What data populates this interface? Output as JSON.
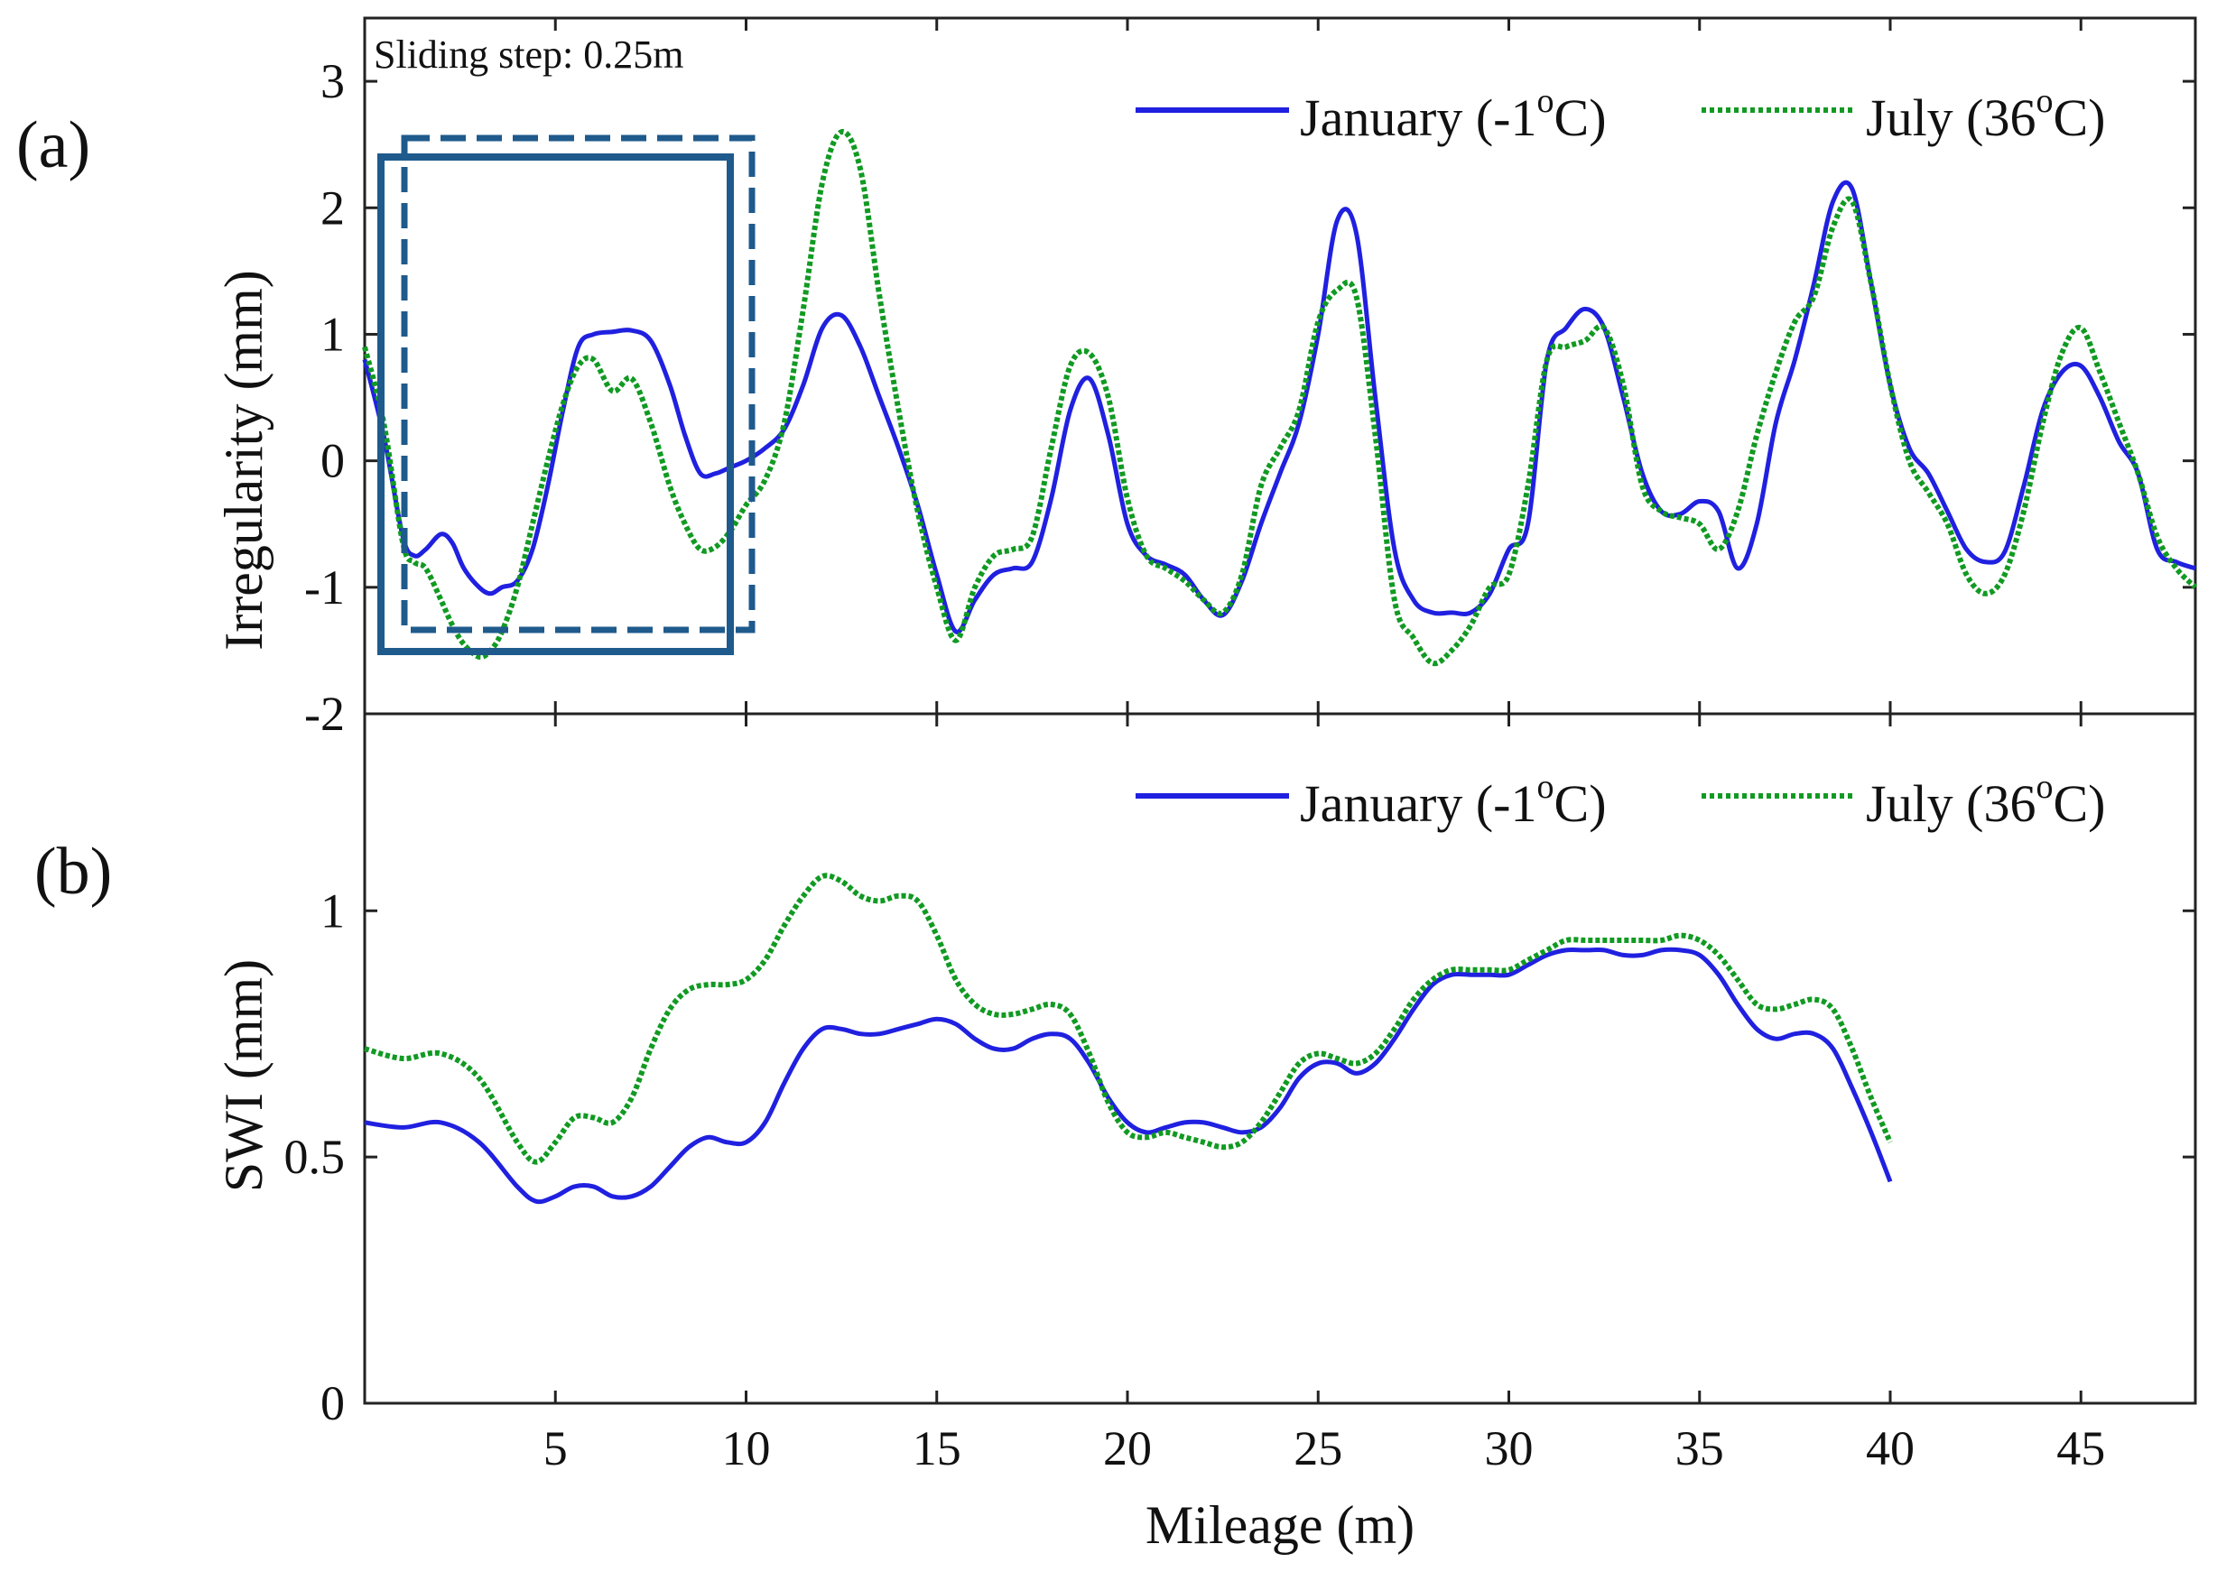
{
  "panel_a_label": "(a)",
  "panel_b_label": "(b)",
  "annotation": "Sliding step: 0.25m",
  "chart_data": [
    {
      "type": "line",
      "panel": "(a)",
      "title": "",
      "xlabel": "",
      "ylabel": "Irregularity (mm)",
      "xlim": [
        0,
        48
      ],
      "ylim": [
        -2,
        3.5
      ],
      "yticks": [
        -2,
        -1,
        0,
        1,
        2,
        3
      ],
      "grid": false,
      "legend": "top-right",
      "series": [
        {
          "name": "January",
          "legend_main": "January (-1",
          "legend_sup": "o",
          "legend_end": "C)",
          "color": "#2020e0",
          "style": "solid",
          "x": [
            0,
            0.5,
            1,
            1.3,
            1.6,
            2,
            2.3,
            2.6,
            3,
            3.3,
            3.6,
            4,
            4.4,
            4.8,
            5.2,
            5.6,
            6,
            6.5,
            7,
            7.5,
            8,
            8.4,
            8.8,
            9.2,
            9.6,
            10,
            10.5,
            11,
            11.5,
            12,
            12.5,
            13,
            13.5,
            14,
            14.5,
            15,
            15.5,
            16,
            16.5,
            17,
            17.5,
            18,
            18.5,
            19,
            19.5,
            20,
            20.5,
            21,
            21.5,
            22,
            22.5,
            23,
            23.5,
            24,
            24.5,
            25,
            25.5,
            26,
            26.5,
            27,
            27.5,
            28,
            28.5,
            29,
            29.5,
            30,
            30.5,
            31,
            31.5,
            32,
            32.5,
            33,
            33.5,
            34,
            34.5,
            35,
            35.5,
            36,
            36.5,
            37,
            37.5,
            38,
            38.5,
            39,
            39.5,
            40,
            40.5,
            41,
            41.5,
            42,
            42.5,
            43,
            43.5,
            44,
            44.5,
            45,
            45.5,
            46,
            46.5,
            47,
            47.5,
            48
          ],
          "values": [
            0.8,
            0.2,
            -0.6,
            -0.75,
            -0.7,
            -0.58,
            -0.65,
            -0.85,
            -1,
            -1.05,
            -1.0,
            -0.95,
            -0.7,
            -0.2,
            0.4,
            0.9,
            1.0,
            1.02,
            1.03,
            0.95,
            0.6,
            0.2,
            -0.1,
            -0.1,
            -0.05,
            0.0,
            0.1,
            0.25,
            0.6,
            1.05,
            1.15,
            0.9,
            0.5,
            0.1,
            -0.35,
            -0.9,
            -1.35,
            -1.1,
            -0.9,
            -0.85,
            -0.8,
            -0.3,
            0.4,
            0.65,
            0.2,
            -0.5,
            -0.75,
            -0.82,
            -0.9,
            -1.1,
            -1.22,
            -0.95,
            -0.5,
            -0.1,
            0.3,
            1.0,
            1.9,
            1.8,
            0.5,
            -0.7,
            -1.1,
            -1.2,
            -1.2,
            -1.2,
            -1.05,
            -0.7,
            -0.5,
            0.8,
            1.05,
            1.2,
            1.05,
            0.5,
            -0.1,
            -0.4,
            -0.42,
            -0.32,
            -0.4,
            -0.85,
            -0.5,
            0.3,
            0.8,
            1.4,
            2.05,
            2.15,
            1.4,
            0.6,
            0.1,
            -0.1,
            -0.4,
            -0.7,
            -0.8,
            -0.72,
            -0.2,
            0.4,
            0.7,
            0.75,
            0.5,
            0.15,
            -0.1,
            -0.7,
            -0.8,
            -0.85
          ]
        },
        {
          "name": "July",
          "legend_main": "July (36",
          "legend_sup": "o",
          "legend_end": "C)",
          "color": "#119a22",
          "style": "dotted",
          "x": [
            0,
            0.5,
            1,
            1.3,
            1.6,
            2,
            2.3,
            2.6,
            3,
            3.3,
            3.6,
            4,
            4.4,
            4.8,
            5.2,
            5.6,
            6,
            6.5,
            7,
            7.5,
            8,
            8.4,
            8.8,
            9.2,
            9.6,
            10,
            10.5,
            11,
            11.5,
            12,
            12.5,
            13,
            13.5,
            14,
            14.5,
            15,
            15.5,
            16,
            16.5,
            17,
            17.5,
            18,
            18.5,
            19,
            19.5,
            20,
            20.5,
            21,
            21.5,
            22,
            22.5,
            23,
            23.5,
            24,
            24.5,
            25,
            25.5,
            26,
            26.5,
            27,
            27.5,
            28,
            28.5,
            29,
            29.5,
            30,
            30.5,
            31,
            31.5,
            32,
            32.5,
            33,
            33.5,
            34,
            34.5,
            35,
            35.5,
            36,
            36.5,
            37,
            37.5,
            38,
            38.5,
            39,
            39.5,
            40,
            40.5,
            41,
            41.5,
            42,
            42.5,
            43,
            43.5,
            44,
            44.5,
            45,
            45.5,
            46,
            46.5,
            47,
            47.5,
            48
          ],
          "values": [
            0.9,
            0.3,
            -0.65,
            -0.8,
            -0.85,
            -1.1,
            -1.3,
            -1.45,
            -1.55,
            -1.5,
            -1.35,
            -1.0,
            -0.5,
            0.0,
            0.45,
            0.75,
            0.8,
            0.55,
            0.65,
            0.3,
            -0.2,
            -0.5,
            -0.7,
            -0.68,
            -0.55,
            -0.35,
            -0.15,
            0.3,
            1.2,
            2.2,
            2.6,
            2.3,
            1.3,
            0.4,
            -0.4,
            -1.0,
            -1.42,
            -1.0,
            -0.75,
            -0.7,
            -0.6,
            0.1,
            0.75,
            0.85,
            0.5,
            -0.3,
            -0.75,
            -0.85,
            -0.95,
            -1.1,
            -1.2,
            -0.9,
            -0.2,
            0.1,
            0.4,
            1.1,
            1.35,
            1.3,
            0.2,
            -1.1,
            -1.4,
            -1.6,
            -1.5,
            -1.3,
            -1.0,
            -0.9,
            -0.2,
            0.8,
            0.9,
            0.95,
            1.05,
            0.6,
            -0.2,
            -0.4,
            -0.45,
            -0.5,
            -0.7,
            -0.4,
            0.2,
            0.7,
            1.1,
            1.3,
            1.85,
            2.05,
            1.4,
            0.6,
            0.0,
            -0.25,
            -0.5,
            -0.9,
            -1.05,
            -0.9,
            -0.4,
            0.3,
            0.85,
            1.05,
            0.7,
            0.3,
            -0.1,
            -0.6,
            -0.85,
            -1.0
          ]
        }
      ]
    },
    {
      "type": "line",
      "panel": "(b)",
      "title": "",
      "xlabel": "Mileage (m)",
      "ylabel": "SWI (mm)",
      "xlim": [
        0,
        48
      ],
      "ylim": [
        0,
        1.4
      ],
      "yticks": [
        0,
        0.5,
        1
      ],
      "ytick_labels": [
        "0",
        "0.5",
        "1"
      ],
      "xticks": [
        5,
        10,
        15,
        20,
        25,
        30,
        35,
        40,
        45
      ],
      "grid": false,
      "legend": "top-right",
      "series": [
        {
          "name": "January",
          "legend_main": "January (-1",
          "legend_sup": "o",
          "legend_end": "C)",
          "color": "#2020e0",
          "style": "solid",
          "x": [
            0,
            1,
            2,
            3,
            4,
            4.5,
            5,
            5.5,
            6,
            6.5,
            7,
            7.5,
            8,
            8.5,
            9,
            9.5,
            10,
            10.5,
            11,
            11.5,
            12,
            12.5,
            13,
            13.5,
            14,
            14.5,
            15,
            15.5,
            16,
            16.5,
            17,
            17.5,
            18,
            18.5,
            19,
            19.5,
            20,
            20.5,
            21,
            21.5,
            22,
            22.5,
            23,
            23.5,
            24,
            24.5,
            25,
            25.5,
            26,
            26.5,
            27,
            27.5,
            28,
            28.5,
            29,
            29.5,
            30,
            30.5,
            31,
            31.5,
            32,
            32.5,
            33,
            33.5,
            34,
            34.5,
            35,
            35.5,
            36,
            36.5,
            37,
            37.5,
            38,
            38.5,
            39,
            39.5,
            40
          ],
          "values": [
            0.57,
            0.56,
            0.57,
            0.53,
            0.44,
            0.41,
            0.42,
            0.44,
            0.44,
            0.42,
            0.42,
            0.44,
            0.48,
            0.52,
            0.54,
            0.53,
            0.53,
            0.57,
            0.65,
            0.72,
            0.76,
            0.76,
            0.75,
            0.75,
            0.76,
            0.77,
            0.78,
            0.77,
            0.74,
            0.72,
            0.72,
            0.74,
            0.75,
            0.74,
            0.69,
            0.62,
            0.57,
            0.55,
            0.56,
            0.57,
            0.57,
            0.56,
            0.55,
            0.56,
            0.6,
            0.66,
            0.69,
            0.69,
            0.67,
            0.69,
            0.74,
            0.8,
            0.85,
            0.87,
            0.87,
            0.87,
            0.87,
            0.89,
            0.91,
            0.92,
            0.92,
            0.92,
            0.91,
            0.91,
            0.92,
            0.92,
            0.91,
            0.87,
            0.81,
            0.76,
            0.74,
            0.75,
            0.75,
            0.72,
            0.64,
            0.55,
            0.45
          ]
        },
        {
          "name": "July",
          "legend_main": "July (36",
          "legend_sup": "o",
          "legend_end": "C)",
          "color": "#119a22",
          "style": "dotted",
          "x": [
            0,
            1,
            2,
            3,
            4,
            4.5,
            5,
            5.5,
            6,
            6.5,
            7,
            7.5,
            8,
            8.5,
            9,
            9.5,
            10,
            10.5,
            11,
            11.5,
            12,
            12.5,
            13,
            13.5,
            14,
            14.5,
            15,
            15.5,
            16,
            16.5,
            17,
            17.5,
            18,
            18.5,
            19,
            19.5,
            20,
            20.5,
            21,
            21.5,
            22,
            22.5,
            23,
            23.5,
            24,
            24.5,
            25,
            25.5,
            26,
            26.5,
            27,
            27.5,
            28,
            28.5,
            29,
            29.5,
            30,
            30.5,
            31,
            31.5,
            32,
            32.5,
            33,
            33.5,
            34,
            34.5,
            35,
            35.5,
            36,
            36.5,
            37,
            37.5,
            38,
            38.5,
            39,
            39.5,
            40
          ],
          "values": [
            0.72,
            0.7,
            0.71,
            0.66,
            0.53,
            0.49,
            0.53,
            0.58,
            0.58,
            0.57,
            0.62,
            0.72,
            0.8,
            0.84,
            0.85,
            0.85,
            0.86,
            0.9,
            0.97,
            1.03,
            1.07,
            1.06,
            1.03,
            1.02,
            1.03,
            1.02,
            0.95,
            0.86,
            0.81,
            0.79,
            0.79,
            0.8,
            0.81,
            0.79,
            0.71,
            0.61,
            0.55,
            0.54,
            0.55,
            0.54,
            0.53,
            0.52,
            0.53,
            0.57,
            0.63,
            0.69,
            0.71,
            0.7,
            0.69,
            0.71,
            0.76,
            0.82,
            0.86,
            0.88,
            0.88,
            0.88,
            0.88,
            0.9,
            0.92,
            0.94,
            0.94,
            0.94,
            0.94,
            0.94,
            0.94,
            0.95,
            0.94,
            0.91,
            0.86,
            0.81,
            0.8,
            0.81,
            0.82,
            0.8,
            0.72,
            0.62,
            0.53
          ]
        }
      ]
    }
  ]
}
